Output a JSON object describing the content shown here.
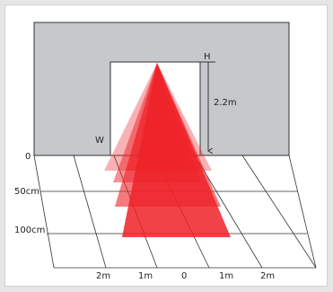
{
  "colors": {
    "background": "#e6e6e6",
    "panel": "#ffffff",
    "wall": "#c7c8cc",
    "outline": "#333333",
    "beam": "#ee2128"
  },
  "labels": {
    "height_marker": "H",
    "height_value": "2.2m",
    "width_marker": "W",
    "depth": [
      "0",
      "50cm",
      "100cm"
    ],
    "width": [
      "2m",
      "1m",
      "0",
      "1m",
      "2m"
    ]
  }
}
